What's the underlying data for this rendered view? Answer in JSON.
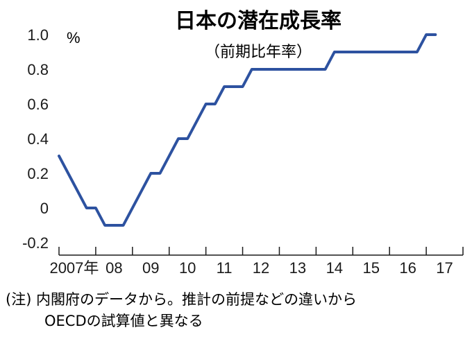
{
  "chart_data": {
    "type": "line",
    "title": "日本の潜在成長率",
    "subtitle": "（前期比年率）",
    "unit": "%",
    "x_tick_labels": [
      "2007年",
      "08",
      "09",
      "10",
      "11",
      "12",
      "13",
      "14",
      "15",
      "16",
      "17"
    ],
    "y_ticks": [
      {
        "value": -0.2,
        "label": "-0.2"
      },
      {
        "value": 0,
        "label": "0"
      },
      {
        "value": 0.2,
        "label": "0.2"
      },
      {
        "value": 0.4,
        "label": "0.4"
      },
      {
        "value": 0.6,
        "label": "0.6"
      },
      {
        "value": 0.8,
        "label": "0.8"
      },
      {
        "value": 1.0,
        "label": "1.0"
      }
    ],
    "ylim": [
      -0.2,
      1.0
    ],
    "xlim": [
      2007.0,
      2018.0
    ],
    "line_color": "#2d52a0",
    "series": [
      {
        "x": [
          2007.0,
          2007.75,
          2008.0,
          2008.25,
          2008.75,
          2009.0,
          2009.25,
          2009.5,
          2009.75,
          2010.0,
          2010.25,
          2010.5,
          2010.75,
          2011.0,
          2011.25,
          2011.5,
          2011.75,
          2012.0,
          2012.25,
          2012.5,
          2013.0,
          2013.5,
          2014.0,
          2014.25,
          2014.5,
          2015.0,
          2015.5,
          2016.0,
          2016.5,
          2016.75,
          2017.0,
          2017.25
        ],
        "y": [
          0.3,
          0.0,
          0.0,
          -0.1,
          -0.1,
          0.0,
          0.1,
          0.2,
          0.2,
          0.3,
          0.4,
          0.4,
          0.5,
          0.6,
          0.6,
          0.7,
          0.7,
          0.7,
          0.8,
          0.8,
          0.8,
          0.8,
          0.8,
          0.8,
          0.9,
          0.9,
          0.9,
          0.9,
          0.9,
          0.9,
          1.0,
          1.0
        ]
      }
    ]
  },
  "note": {
    "line1": "(注) 内閣府のデータから。推計の前提などの違いから",
    "line2": "OECDの試算値と異なる"
  }
}
